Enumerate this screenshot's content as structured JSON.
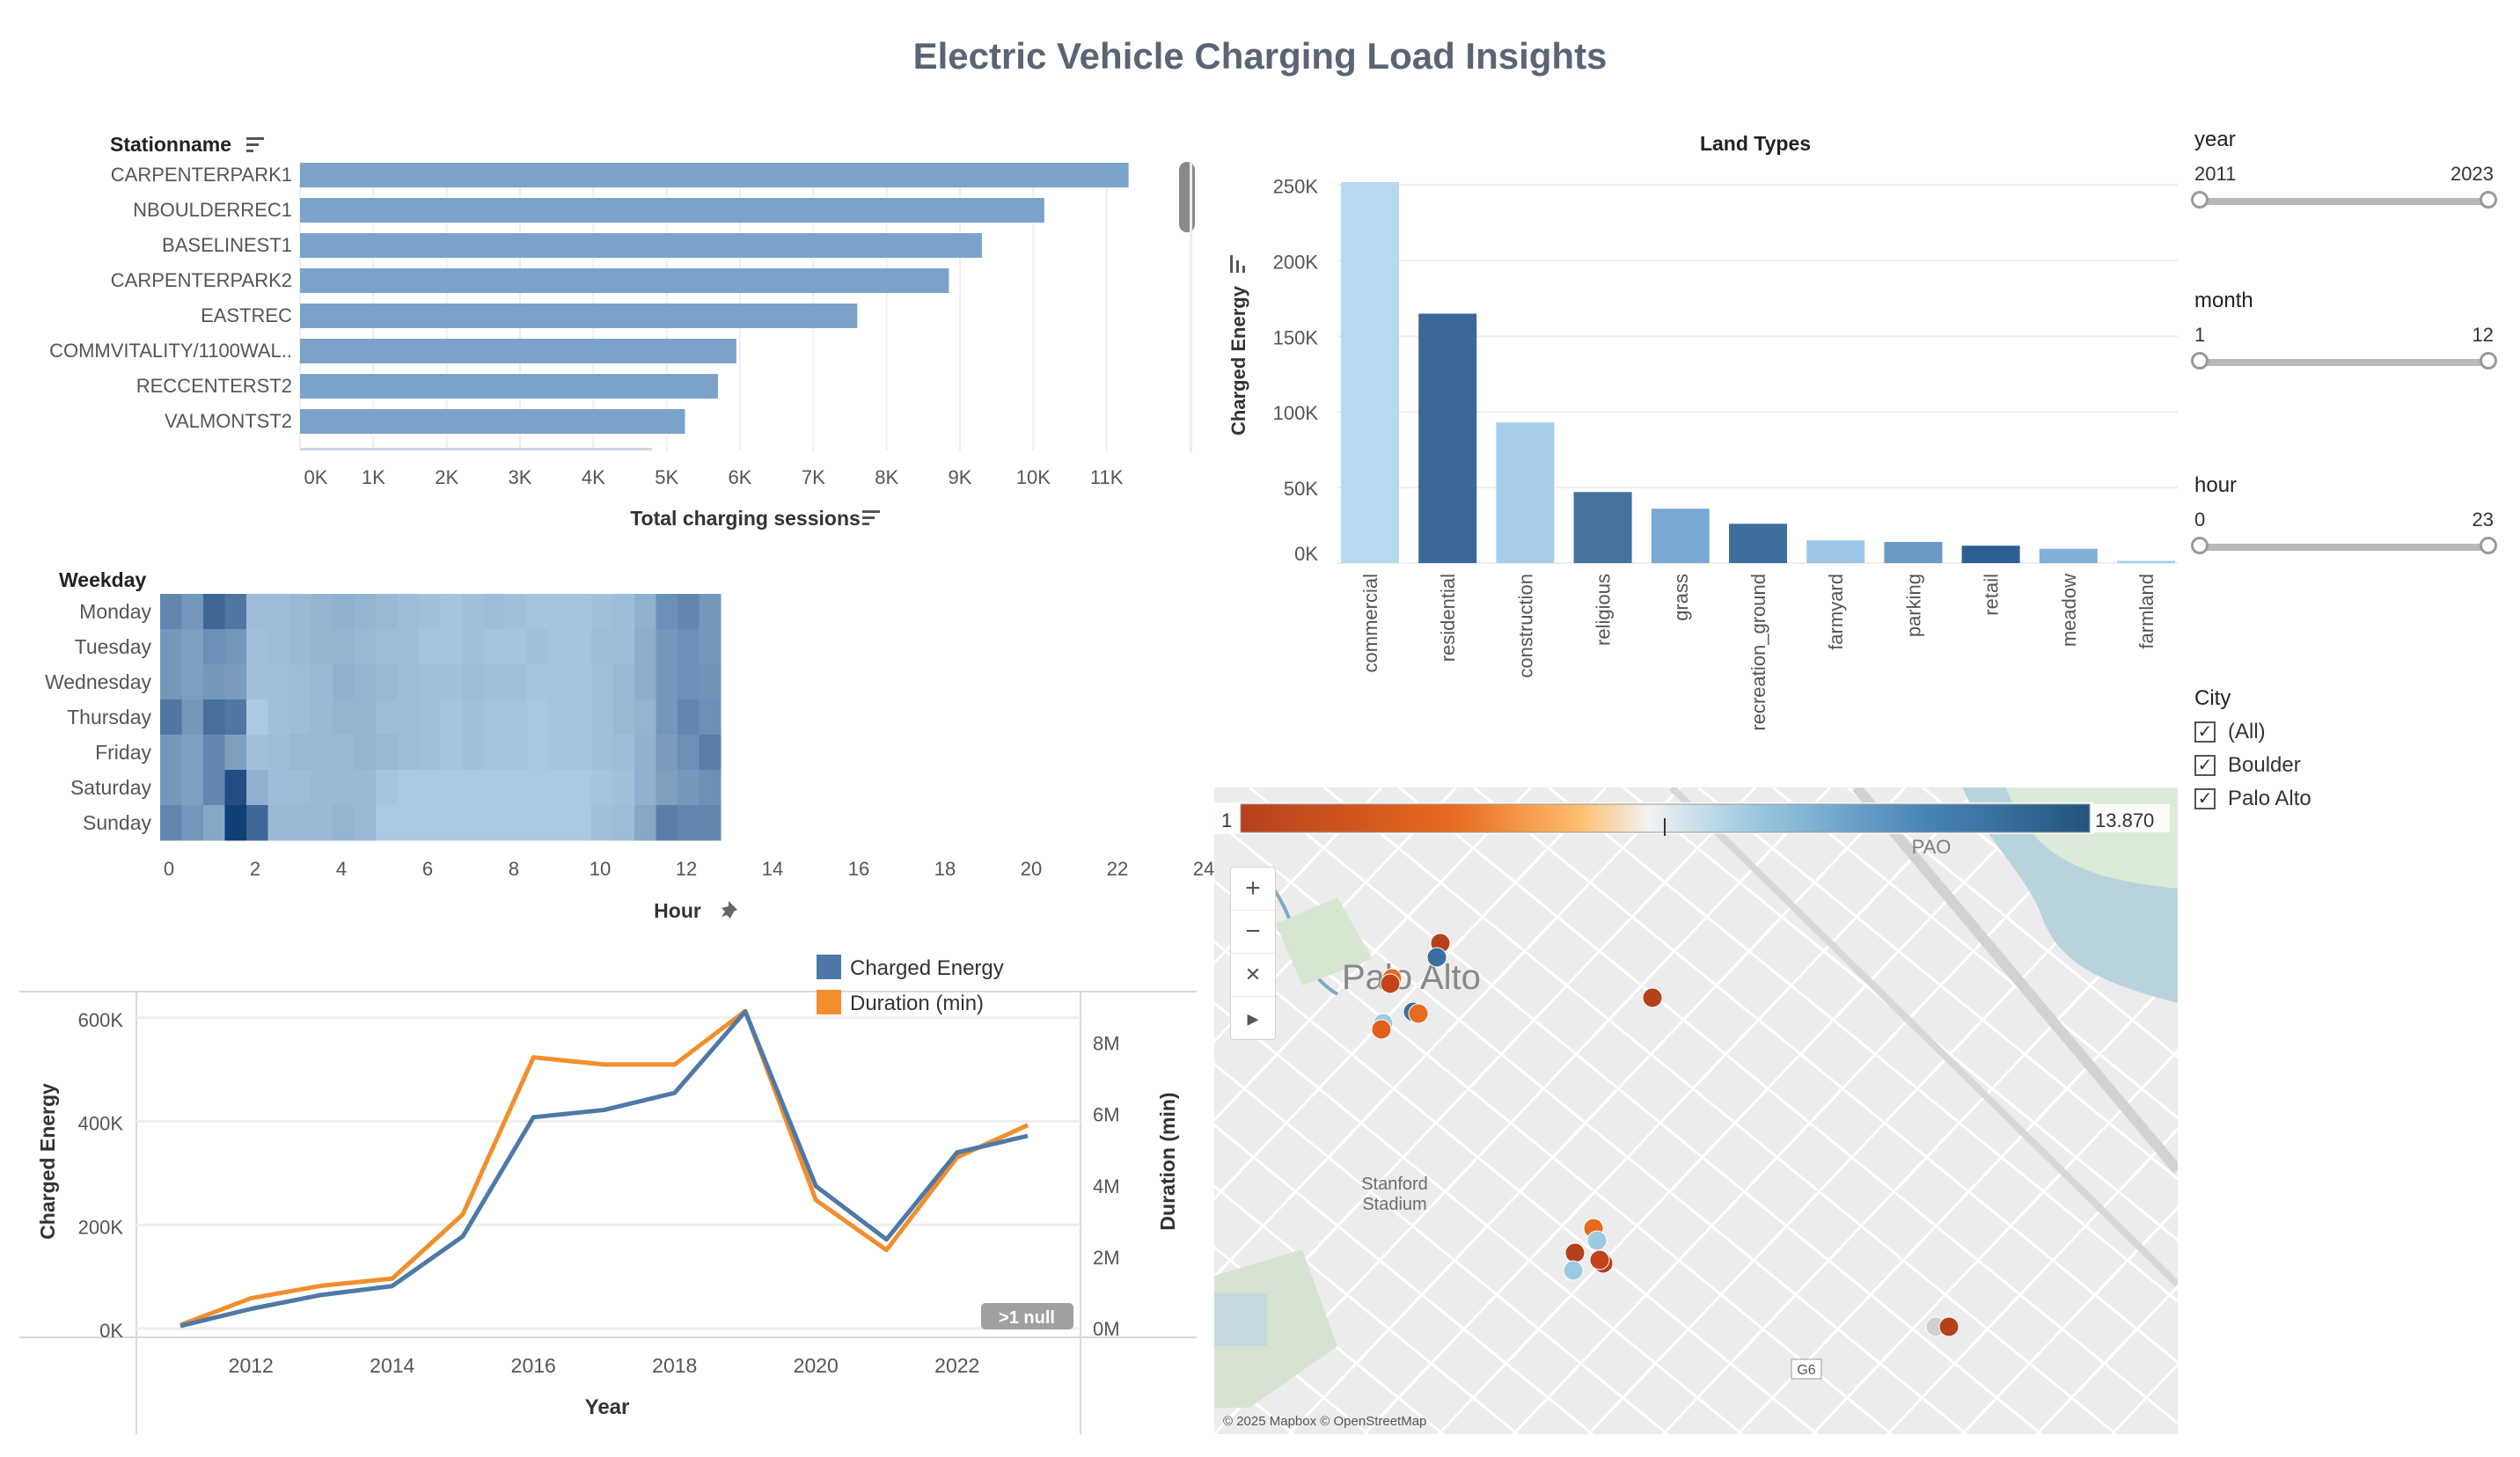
{
  "dashboard": {
    "title": "Electric Vehicle Charging Load Insights"
  },
  "stations": {
    "header": "Stationname",
    "axis_label": "Total charging sessions",
    "chart_data": {
      "type": "bar",
      "orientation": "horizontal",
      "categories": [
        "CARPENTERPARK1",
        "NBOULDERREC1",
        "BASELINEST1",
        "CARPENTERPARK2",
        "EASTREC",
        "COMMVITALITY/1100WAL..",
        "RECCENTERST2",
        "VALMONTST2"
      ],
      "values": [
        11300,
        10150,
        9300,
        8850,
        7600,
        5950,
        5700,
        5250
      ],
      "xticks": [
        "0K",
        "1K",
        "2K",
        "3K",
        "4K",
        "5K",
        "6K",
        "7K",
        "8K",
        "9K",
        "10K",
        "11K"
      ],
      "xlim": [
        0,
        12000
      ],
      "color": "#7ba3c9"
    }
  },
  "heatmap": {
    "row_header": "Weekday",
    "xlabel": "Hour",
    "chart_data": {
      "type": "heatmap",
      "rows": [
        "Monday",
        "Tuesday",
        "Wednesday",
        "Thursday",
        "Friday",
        "Saturday",
        "Sunday"
      ],
      "xticks": [
        "0",
        "2",
        "4",
        "6",
        "8",
        "10",
        "12",
        "14",
        "16",
        "18",
        "20",
        "22",
        "24"
      ],
      "values": [
        [
          0.55,
          0.45,
          0.75,
          0.65,
          0.22,
          0.22,
          0.25,
          0.28,
          0.3,
          0.28,
          0.25,
          0.22,
          0.2,
          0.18,
          0.2,
          0.22,
          0.2,
          0.18,
          0.18,
          0.18,
          0.2,
          0.22,
          0.3,
          0.5,
          0.55,
          0.45
        ],
        [
          0.45,
          0.4,
          0.5,
          0.45,
          0.2,
          0.22,
          0.25,
          0.28,
          0.28,
          0.25,
          0.22,
          0.22,
          0.18,
          0.18,
          0.2,
          0.18,
          0.18,
          0.2,
          0.18,
          0.18,
          0.22,
          0.22,
          0.32,
          0.45,
          0.5,
          0.45
        ],
        [
          0.45,
          0.4,
          0.45,
          0.42,
          0.2,
          0.2,
          0.22,
          0.25,
          0.3,
          0.28,
          0.25,
          0.22,
          0.2,
          0.2,
          0.22,
          0.2,
          0.2,
          0.18,
          0.18,
          0.18,
          0.2,
          0.25,
          0.32,
          0.45,
          0.5,
          0.48
        ],
        [
          0.65,
          0.45,
          0.7,
          0.65,
          0.15,
          0.2,
          0.22,
          0.25,
          0.28,
          0.28,
          0.22,
          0.22,
          0.2,
          0.18,
          0.2,
          0.18,
          0.18,
          0.16,
          0.18,
          0.18,
          0.2,
          0.25,
          0.28,
          0.45,
          0.55,
          0.5
        ],
        [
          0.45,
          0.4,
          0.55,
          0.4,
          0.2,
          0.22,
          0.25,
          0.25,
          0.25,
          0.28,
          0.25,
          0.22,
          0.2,
          0.18,
          0.2,
          0.18,
          0.18,
          0.16,
          0.18,
          0.18,
          0.2,
          0.22,
          0.3,
          0.42,
          0.5,
          0.6
        ],
        [
          0.45,
          0.4,
          0.55,
          0.9,
          0.3,
          0.22,
          0.22,
          0.25,
          0.25,
          0.25,
          0.18,
          0.15,
          0.15,
          0.15,
          0.15,
          0.15,
          0.15,
          0.15,
          0.15,
          0.15,
          0.18,
          0.2,
          0.3,
          0.4,
          0.45,
          0.5
        ],
        [
          0.55,
          0.45,
          0.35,
          1.0,
          0.75,
          0.25,
          0.25,
          0.25,
          0.28,
          0.25,
          0.15,
          0.15,
          0.15,
          0.15,
          0.15,
          0.15,
          0.15,
          0.15,
          0.15,
          0.15,
          0.2,
          0.22,
          0.35,
          0.6,
          0.55,
          0.55
        ]
      ]
    }
  },
  "trend": {
    "xlabel": "Year",
    "ylabel_left": "Charged Energy",
    "ylabel_right": "Duration (min)",
    "null_badge": ">1 null",
    "legend": [
      {
        "label": "Charged Energy",
        "color": "#4e79a7"
      },
      {
        "label": "Duration (min)",
        "color": "#f28e2b"
      }
    ],
    "chart_data": {
      "type": "line",
      "x": [
        2011,
        2012,
        2013,
        2014,
        2015,
        2016,
        2017,
        2018,
        2019,
        2020,
        2021,
        2022,
        2023
      ],
      "xticks": [
        "2012",
        "2014",
        "2016",
        "2018",
        "2020",
        "2022"
      ],
      "yticks_left": [
        "600K",
        "400K",
        "200K",
        "0K"
      ],
      "yticks_right": [
        "8M",
        "6M",
        "4M",
        "2M",
        "0M"
      ],
      "ylim_left": [
        0,
        620000
      ],
      "ylim_right": [
        0,
        9000000
      ],
      "series": [
        {
          "name": "Charged Energy",
          "axis": "left",
          "color": "#4e79a7",
          "values": [
            5000,
            38000,
            65000,
            82000,
            178000,
            408000,
            422000,
            455000,
            612000,
            275000,
            172000,
            340000,
            372000
          ]
        },
        {
          "name": "Duration (min)",
          "axis": "right",
          "color": "#f28e2b",
          "values": [
            100000,
            850000,
            1200000,
            1400000,
            3200000,
            7600000,
            7400000,
            7400000,
            8900000,
            3600000,
            2200000,
            4800000,
            5700000
          ]
        }
      ]
    }
  },
  "landtypes": {
    "title": "Land Types",
    "ylabel": "Charged Energy",
    "chart_data": {
      "type": "bar",
      "categories": [
        "commercial",
        "residential",
        "construction",
        "religious",
        "grass",
        "recreation_ground",
        "farmyard",
        "parking",
        "retail",
        "meadow",
        "farmland"
      ],
      "values": [
        252000,
        165000,
        93000,
        47000,
        36000,
        26000,
        15000,
        14000,
        11500,
        9500,
        1500
      ],
      "colors": [
        "#b7d9ee",
        "#3b6896",
        "#a6cde9",
        "#47719f",
        "#79a9d2",
        "#3f6e9e",
        "#9ec7e7",
        "#6a9ac6",
        "#2d5f92",
        "#82afd8",
        "#a9cfea"
      ],
      "yticks": [
        "250K",
        "200K",
        "150K",
        "100K",
        "50K",
        "0K"
      ],
      "ylim": [
        0,
        252000
      ]
    }
  },
  "filters": {
    "year": {
      "label": "year",
      "min": "2011",
      "max": "2023"
    },
    "month": {
      "label": "month",
      "min": "1",
      "max": "12"
    },
    "hour": {
      "label": "hour",
      "min": "0",
      "max": "23"
    },
    "city": {
      "label": "City",
      "options": [
        {
          "label": "(All)",
          "checked": true
        },
        {
          "label": "Boulder",
          "checked": true
        },
        {
          "label": "Palo Alto",
          "checked": true
        }
      ]
    }
  },
  "map": {
    "scale_min": "1",
    "scale_max": "13.870",
    "scale_colors": [
      "#b5401c",
      "#e86a1f",
      "#fdbf6f",
      "#f2f2f2",
      "#9ecae1",
      "#4a86b8",
      "#24547f"
    ],
    "city_label": "Palo Alto",
    "airport_label": "PAO",
    "stadium_label": "Stanford\nStadium",
    "route_label": "G6",
    "attribution": "© 2025 Mapbox © OpenStreetMap",
    "controls": {
      "zoom_in": "+",
      "zoom_out": "−",
      "pin": "✕",
      "play": "▸"
    }
  }
}
